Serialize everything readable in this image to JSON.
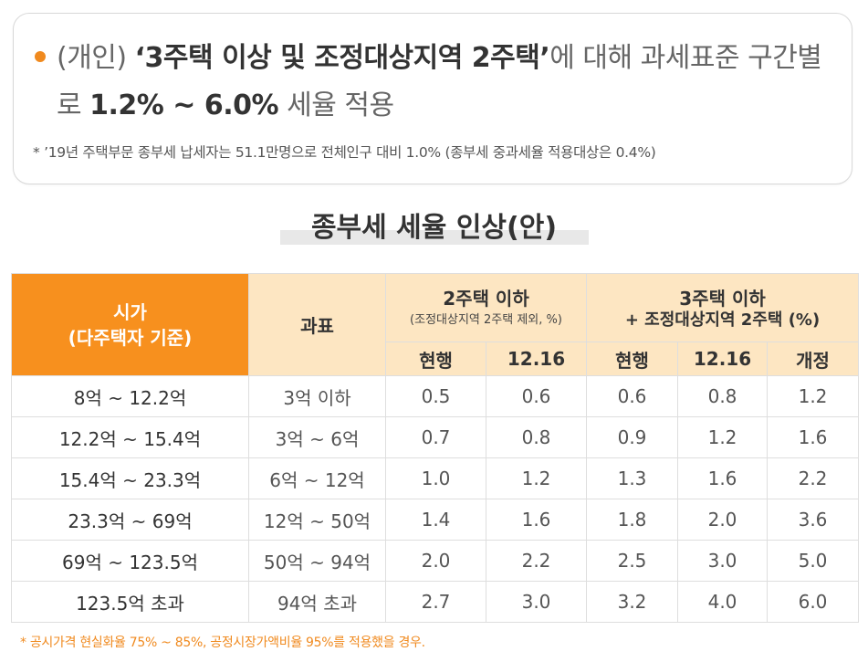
{
  "headline": {
    "part1": "(개인) ",
    "part2": "‘3주택 이상 및 조정대상지역 2주택’",
    "part3": "에 대해 과세표준 구간별로 ",
    "part4": "1.2% ~ 6.0%",
    "part5": " 세율 적용"
  },
  "footnote_top": "* ’19년 주택부문 종부세 납세자는 51.1만명으로 전체인구 대비 1.0% (종부세 중과세율 적용대상은 0.4%)",
  "table_title": "종부세 세율 인상(안)",
  "table": {
    "col_price_line1": "시가",
    "col_price_line2": "(다주택자 기준)",
    "col_base": "과표",
    "group1_title": "2주택 이하",
    "group1_sub": "(조정대상지역 2주택 제외, %)",
    "group2_title": "3주택 이하",
    "group2_sub": "+ 조정대상지역 2주택 (%)",
    "sub_current": "현행",
    "sub_1216": "12.16",
    "sub_current2": "현행",
    "sub_12162": "12.16",
    "sub_revised": "개정",
    "rows": [
      {
        "price": "8억 ~ 12.2억",
        "base": "3억 이하",
        "a": "0.5",
        "b": "0.6",
        "c": "0.6",
        "d": "0.8",
        "e": "1.2"
      },
      {
        "price": "12.2억 ~ 15.4억",
        "base": "3억 ~ 6억",
        "a": "0.7",
        "b": "0.8",
        "c": "0.9",
        "d": "1.2",
        "e": "1.6"
      },
      {
        "price": "15.4억 ~ 23.3억",
        "base": "6억 ~ 12억",
        "a": "1.0",
        "b": "1.2",
        "c": "1.3",
        "d": "1.6",
        "e": "2.2"
      },
      {
        "price": "23.3억 ~ 69억",
        "base": "12억 ~ 50억",
        "a": "1.4",
        "b": "1.6",
        "c": "1.8",
        "d": "2.0",
        "e": "3.6"
      },
      {
        "price": "69억 ~ 123.5억",
        "base": "50억 ~ 94억",
        "a": "2.0",
        "b": "2.2",
        "c": "2.5",
        "d": "3.0",
        "e": "5.0"
      },
      {
        "price": "123.5억 초과",
        "base": "94억 초과",
        "a": "2.7",
        "b": "3.0",
        "c": "3.2",
        "d": "4.0",
        "e": "6.0"
      }
    ]
  },
  "footnote_bottom": "* 공시가격 현실화율 75% ~ 85%, 공정시장가액비율 95%를 적용했을 경우.",
  "colors": {
    "accent": "#f7901e",
    "header_bg": "#fde6c2",
    "bullet": "#f08a1f"
  }
}
